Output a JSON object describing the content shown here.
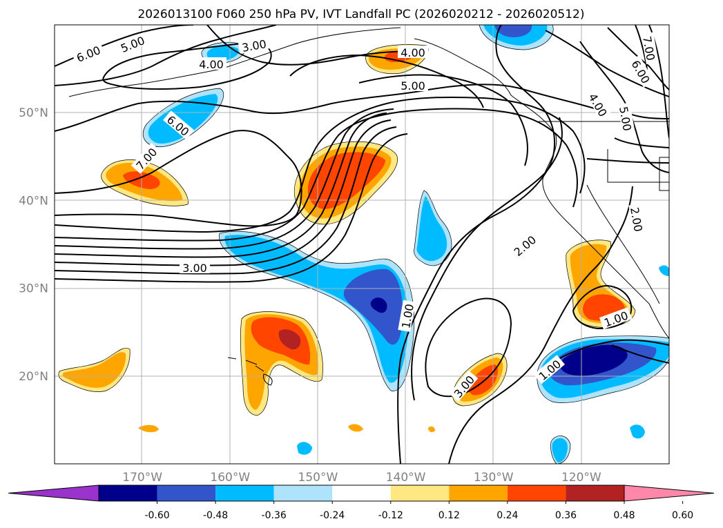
{
  "chart_data": {
    "type": "contour-map",
    "title": "2026013100 F060 250 hPa PV, IVT Landfall PC (2026020212 - 2026020512)",
    "x_axis": {
      "ticks": [
        "170°W",
        "160°W",
        "150°W",
        "140°W",
        "130°W",
        "120°W"
      ],
      "range_deg": [
        -180,
        -110
      ]
    },
    "y_axis": {
      "ticks": [
        "50°N",
        "40°N",
        "30°N",
        "20°N"
      ],
      "range_deg": [
        10,
        60
      ]
    },
    "grid": true,
    "contour_labels": [
      "6.00",
      "5.00",
      "4.00",
      "3.00",
      "7.00",
      "6.00",
      "5.00",
      "4.00",
      "4.00",
      "5.00",
      "6.00",
      "7.00",
      "3.00",
      "2.00",
      "2.00",
      "1.00",
      "3.00",
      "1.00",
      "1.00"
    ],
    "colorbar": {
      "orientation": "horizontal",
      "extend": "both",
      "ticks": [
        "-0.60",
        "-0.48",
        "-0.36",
        "-0.24",
        "-0.12",
        "0.12",
        "0.24",
        "0.36",
        "0.48",
        "0.60"
      ],
      "colors": [
        "#9933cc",
        "#00008b",
        "#3355cc",
        "#00bbff",
        "#aee3fb",
        "#ffffff",
        "#ffe882",
        "#ffa500",
        "#ff4500",
        "#b22222",
        "#ff88aa"
      ]
    },
    "fill_colors": {
      "neg_high": "#00008b",
      "neg_mid": "#3355cc",
      "neg_low": "#00bbff",
      "neg_weak": "#aee3fb",
      "pos_weak": "#ffe882",
      "pos_low": "#ffa500",
      "pos_mid": "#ff4500",
      "pos_high": "#b22222"
    }
  }
}
